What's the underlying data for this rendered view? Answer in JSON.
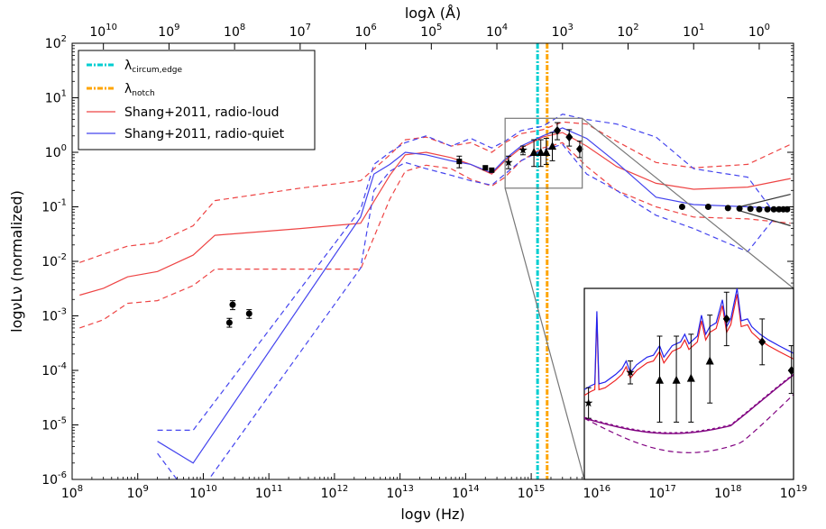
{
  "chart_data": {
    "type": "line",
    "xlabel": "logν (Hz)",
    "ylabel": "logνLν (normalized)",
    "top_xlabel": "logλ (Å)",
    "x_scale": "log",
    "y_scale": "log",
    "xlim": [
      100000000.0,
      1e+19
    ],
    "ylim": [
      1e-06,
      100
    ],
    "x_ticks": [
      {
        "base": "10",
        "exp": "8"
      },
      {
        "base": "10",
        "exp": "9"
      },
      {
        "base": "10",
        "exp": "10"
      },
      {
        "base": "10",
        "exp": "11"
      },
      {
        "base": "10",
        "exp": "12"
      },
      {
        "base": "10",
        "exp": "13"
      },
      {
        "base": "10",
        "exp": "14"
      },
      {
        "base": "10",
        "exp": "15"
      },
      {
        "base": "10",
        "exp": "16"
      },
      {
        "base": "10",
        "exp": "17"
      },
      {
        "base": "10",
        "exp": "18"
      },
      {
        "base": "10",
        "exp": "19"
      }
    ],
    "y_ticks": [
      {
        "base": "10",
        "exp": "-6"
      },
      {
        "base": "10",
        "exp": "-5"
      },
      {
        "base": "10",
        "exp": "-4"
      },
      {
        "base": "10",
        "exp": "-3"
      },
      {
        "base": "10",
        "exp": "-2"
      },
      {
        "base": "10",
        "exp": "-1"
      },
      {
        "base": "10",
        "exp": "0"
      },
      {
        "base": "10",
        "exp": "1"
      },
      {
        "base": "10",
        "exp": "2"
      }
    ],
    "top_ticks": [
      {
        "base": "10",
        "exp": "10",
        "lambda": 10000000000.0
      },
      {
        "base": "10",
        "exp": "9",
        "lambda": 1000000000.0
      },
      {
        "base": "10",
        "exp": "8",
        "lambda": 100000000.0
      },
      {
        "base": "10",
        "exp": "7",
        "lambda": 10000000.0
      },
      {
        "base": "10",
        "exp": "6",
        "lambda": 1000000.0
      },
      {
        "base": "10",
        "exp": "5",
        "lambda": 100000.0
      },
      {
        "base": "10",
        "exp": "4",
        "lambda": 10000.0
      },
      {
        "base": "10",
        "exp": "3",
        "lambda": 1000.0
      },
      {
        "base": "10",
        "exp": "2",
        "lambda": 100.0
      },
      {
        "base": "10",
        "exp": "1",
        "lambda": 10.0
      },
      {
        "base": "10",
        "exp": "0",
        "lambda": 1
      }
    ],
    "legend": {
      "position": "top-left",
      "entries": [
        {
          "label_main": "λ",
          "label_sub": "circum,edge",
          "color": "#00ced1",
          "style": "dashdot"
        },
        {
          "label_main": "λ",
          "label_sub": "notch",
          "color": "#ffa500",
          "style": "dashdot"
        },
        {
          "label_main": "Shang+2011, radio-loud",
          "label_sub": "",
          "color": "#ee4444",
          "style": "solid"
        },
        {
          "label_main": "Shang+2011, radio-quiet",
          "label_sub": "",
          "color": "#4444ee",
          "style": "solid"
        }
      ]
    },
    "vlines": [
      {
        "name": "lambda-circum-edge",
        "x": 1250000000000000.0,
        "color": "#00ced1"
      },
      {
        "name": "lambda-notch",
        "x": 1750000000000000.0,
        "color": "#ffa500"
      }
    ],
    "series": [
      {
        "name": "Shang+2011, radio-loud",
        "color": "#ee4444",
        "style": "solid",
        "x": [
          130000000.0,
          300000000.0,
          700000000.0,
          2000000000.0,
          7000000000.0,
          15000000000.0,
          300000000000.0,
          2500000000000.0,
          7000000000000.0,
          12000000000000.0,
          25000000000000.0,
          60000000000000.0,
          120000000000000.0,
          250000000000000.0,
          400000000000000.0,
          700000000000000.0,
          1500000000000000.0,
          3000000000000000.0,
          7000000000000000.0,
          2e+16,
          8e+16,
          3e+17,
          2e+18,
          9e+18
        ],
        "y": [
          0.0024,
          0.0032,
          0.0052,
          0.0065,
          0.013,
          0.03,
          0.04,
          0.05,
          0.38,
          0.9,
          1.0,
          0.8,
          0.6,
          0.4,
          0.7,
          1.2,
          1.9,
          2.3,
          1.3,
          0.55,
          0.27,
          0.21,
          0.23,
          0.33
        ]
      },
      {
        "name": "radio-loud upper",
        "color": "#ee4444",
        "style": "dashed",
        "x": [
          130000000.0,
          300000000.0,
          700000000.0,
          2000000000.0,
          7000000000.0,
          15000000000.0,
          300000000000.0,
          2500000000000.0,
          7000000000000.0,
          12000000000000.0,
          25000000000000.0,
          60000000000000.0,
          120000000000000.0,
          250000000000000.0,
          400000000000000.0,
          700000000000000.0,
          1500000000000000.0,
          3000000000000000.0,
          7000000000000000.0,
          2e+16,
          8e+16,
          3e+17,
          2e+18,
          9e+18
        ],
        "y": [
          0.0095,
          0.0135,
          0.019,
          0.022,
          0.045,
          0.13,
          0.22,
          0.3,
          0.9,
          1.7,
          1.9,
          1.3,
          1.5,
          1.0,
          1.5,
          2.2,
          2.6,
          3.6,
          3.3,
          1.6,
          0.65,
          0.52,
          0.6,
          1.4
        ]
      },
      {
        "name": "radio-loud lower",
        "color": "#ee4444",
        "style": "dashed",
        "x": [
          130000000.0,
          300000000.0,
          700000000.0,
          2000000000.0,
          7000000000.0,
          15000000000.0,
          300000000000.0,
          2500000000000.0,
          7000000000000.0,
          12000000000000.0,
          25000000000000.0,
          60000000000000.0,
          120000000000000.0,
          250000000000000.0,
          400000000000000.0,
          700000000000000.0,
          1500000000000000.0,
          3000000000000000.0,
          7000000000000000.0,
          2e+16,
          8e+16,
          3e+17,
          2e+18,
          9e+18
        ],
        "y": [
          0.0006,
          0.00085,
          0.0017,
          0.0019,
          0.0036,
          0.0072,
          0.0072,
          0.0072,
          0.14,
          0.45,
          0.58,
          0.5,
          0.32,
          0.24,
          0.35,
          0.7,
          1.2,
          1.5,
          0.55,
          0.2,
          0.1,
          0.065,
          0.06,
          0.05
        ]
      },
      {
        "name": "Shang+2011, radio-quiet",
        "color": "#4444ee",
        "style": "solid",
        "x": [
          2000000000.0,
          7000000000.0,
          2500000000000.0,
          4000000000000.0,
          7000000000000.0,
          12000000000000.0,
          25000000000000.0,
          60000000000000.0,
          120000000000000.0,
          250000000000000.0,
          400000000000000.0,
          700000000000000.0,
          1500000000000000.0,
          3000000000000000.0,
          7000000000000000.0,
          2e+16,
          8e+16,
          3e+17,
          2e+18,
          5e+18
        ],
        "y": [
          5e-06,
          2e-06,
          0.065,
          0.4,
          0.6,
          1.0,
          0.9,
          0.7,
          0.6,
          0.42,
          0.75,
          1.3,
          2.0,
          2.8,
          1.8,
          0.65,
          0.15,
          0.11,
          0.1,
          0.095
        ]
      },
      {
        "name": "radio-quiet upper",
        "color": "#4444ee",
        "style": "dashed",
        "x": [
          2000000000.0,
          7000000000.0,
          2500000000000.0,
          4000000000000.0,
          7000000000000.0,
          12000000000000.0,
          25000000000000.0,
          60000000000000.0,
          120000000000000.0,
          250000000000000.0,
          400000000000000.0,
          700000000000000.0,
          1500000000000000.0,
          3000000000000000.0,
          7000000000000000.0,
          2e+16,
          8e+16,
          3e+17,
          2e+18,
          5e+18
        ],
        "y": [
          8e-06,
          8e-06,
          0.09,
          0.6,
          1.0,
          1.5,
          2.0,
          1.3,
          1.8,
          1.2,
          1.6,
          2.5,
          3.0,
          5.0,
          4.0,
          3.3,
          1.9,
          0.5,
          0.35,
          0.08
        ]
      },
      {
        "name": "radio-quiet lower",
        "color": "#4444ee",
        "style": "dashed",
        "x": [
          2000000000.0,
          7000000000.0,
          2500000000000.0,
          4000000000000.0,
          7000000000000.0,
          12000000000000.0,
          25000000000000.0,
          60000000000000.0,
          120000000000000.0,
          250000000000000.0,
          400000000000000.0,
          700000000000000.0,
          1500000000000000.0,
          3000000000000000.0,
          7000000000000000.0,
          2e+16,
          8e+16,
          3e+17,
          2e+18,
          5e+18
        ],
        "y": [
          3e-06,
          4e-07,
          0.0075,
          0.2,
          0.45,
          0.65,
          0.5,
          0.38,
          0.3,
          0.25,
          0.4,
          0.7,
          1.1,
          1.4,
          0.4,
          0.2,
          0.07,
          0.04,
          0.015,
          0.06
        ]
      },
      {
        "name": "x-ray power-law upper",
        "color": "#333333",
        "style": "solid",
        "x": [
          1.5e+18,
          9e+18
        ],
        "y": [
          0.1,
          0.17
        ]
      },
      {
        "name": "x-ray power-law lower",
        "color": "#333333",
        "style": "solid",
        "x": [
          1.5e+18,
          9e+18
        ],
        "y": [
          0.085,
          0.045
        ]
      }
    ],
    "points": {
      "circles": [
        {
          "x": 25000000000.0,
          "y": 0.00075,
          "lo": 0.00062,
          "hi": 0.0009
        },
        {
          "x": 28000000000.0,
          "y": 0.0016,
          "lo": 0.0013,
          "hi": 0.0019
        },
        {
          "x": 50000000000.0,
          "y": 0.0011,
          "lo": 0.0009,
          "hi": 0.0013
        },
        {
          "x": 2e+17,
          "y": 0.1
        },
        {
          "x": 5e+17,
          "y": 0.1
        },
        {
          "x": 1e+18,
          "y": 0.095
        },
        {
          "x": 1.5e+18,
          "y": 0.093
        },
        {
          "x": 2.2e+18,
          "y": 0.092
        },
        {
          "x": 3e+18,
          "y": 0.09
        },
        {
          "x": 4e+18,
          "y": 0.09
        },
        {
          "x": 5e+18,
          "y": 0.09
        },
        {
          "x": 6e+18,
          "y": 0.09
        },
        {
          "x": 7e+18,
          "y": 0.09
        },
        {
          "x": 8e+18,
          "y": 0.09
        }
      ],
      "squares": [
        {
          "x": 80000000000000.0,
          "y": 0.68,
          "lo": 0.52,
          "hi": 0.85
        },
        {
          "x": 200000000000000.0,
          "y": 0.52
        },
        {
          "x": 250000000000000.0,
          "y": 0.47
        }
      ],
      "stars": [
        {
          "x": 450000000000000.0,
          "y": 0.65,
          "lo": 0.5,
          "hi": 0.85
        },
        {
          "x": 750000000000000.0,
          "y": 1.1,
          "lo": 0.9,
          "hi": 1.3
        }
      ],
      "triangles": [
        {
          "x": 1100000000000000.0,
          "y": 1.0,
          "lo": 0.55,
          "hi": 1.7
        },
        {
          "x": 1400000000000000.0,
          "y": 1.0,
          "lo": 0.55,
          "hi": 1.7
        },
        {
          "x": 1700000000000000.0,
          "y": 1.0,
          "lo": 0.6,
          "hi": 1.8
        },
        {
          "x": 2100000000000000.0,
          "y": 1.3,
          "lo": 0.7,
          "hi": 2.3
        }
      ],
      "diamonds": [
        {
          "x": 2500000000000000.0,
          "y": 2.5,
          "lo": 1.7,
          "hi": 3.5
        },
        {
          "x": 3800000000000000.0,
          "y": 1.9,
          "lo": 1.3,
          "hi": 2.6
        },
        {
          "x": 5500000000000000.0,
          "y": 1.15,
          "lo": 0.8,
          "hi": 1.6
        }
      ]
    },
    "zoom_box": {
      "x": [
        400000000000000.0,
        6000000000000000.0
      ],
      "y": [
        0.22,
        4.2
      ]
    }
  }
}
